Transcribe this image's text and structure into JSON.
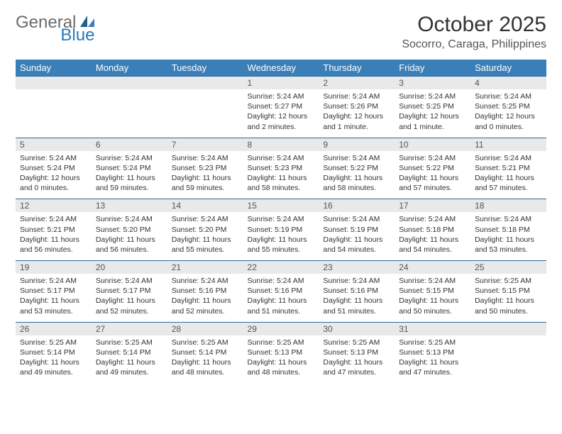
{
  "logo": {
    "general": "General",
    "blue": "Blue"
  },
  "header": {
    "title": "October 2025",
    "location": "Socorro, Caraga, Philippines"
  },
  "styling": {
    "header_row_bg": "#3b7fb8",
    "header_row_color": "#ffffff",
    "daynum_bg": "#e9e9e9",
    "row_border_color": "#2a6a9c",
    "title_fontsize": 30,
    "location_fontsize": 16,
    "dayhead_fontsize": 13,
    "cell_fontsize": 10.5,
    "logo_general_color": "#6b6b6b",
    "logo_blue_color": "#2a7ab8",
    "background": "#ffffff"
  },
  "day_headers": [
    "Sunday",
    "Monday",
    "Tuesday",
    "Wednesday",
    "Thursday",
    "Friday",
    "Saturday"
  ],
  "weeks": [
    [
      {
        "n": "",
        "sunrise": "",
        "sunset": "",
        "daylight": ""
      },
      {
        "n": "",
        "sunrise": "",
        "sunset": "",
        "daylight": ""
      },
      {
        "n": "",
        "sunrise": "",
        "sunset": "",
        "daylight": ""
      },
      {
        "n": "1",
        "sunrise": "Sunrise: 5:24 AM",
        "sunset": "Sunset: 5:27 PM",
        "daylight": "Daylight: 12 hours and 2 minutes."
      },
      {
        "n": "2",
        "sunrise": "Sunrise: 5:24 AM",
        "sunset": "Sunset: 5:26 PM",
        "daylight": "Daylight: 12 hours and 1 minute."
      },
      {
        "n": "3",
        "sunrise": "Sunrise: 5:24 AM",
        "sunset": "Sunset: 5:25 PM",
        "daylight": "Daylight: 12 hours and 1 minute."
      },
      {
        "n": "4",
        "sunrise": "Sunrise: 5:24 AM",
        "sunset": "Sunset: 5:25 PM",
        "daylight": "Daylight: 12 hours and 0 minutes."
      }
    ],
    [
      {
        "n": "5",
        "sunrise": "Sunrise: 5:24 AM",
        "sunset": "Sunset: 5:24 PM",
        "daylight": "Daylight: 12 hours and 0 minutes."
      },
      {
        "n": "6",
        "sunrise": "Sunrise: 5:24 AM",
        "sunset": "Sunset: 5:24 PM",
        "daylight": "Daylight: 11 hours and 59 minutes."
      },
      {
        "n": "7",
        "sunrise": "Sunrise: 5:24 AM",
        "sunset": "Sunset: 5:23 PM",
        "daylight": "Daylight: 11 hours and 59 minutes."
      },
      {
        "n": "8",
        "sunrise": "Sunrise: 5:24 AM",
        "sunset": "Sunset: 5:23 PM",
        "daylight": "Daylight: 11 hours and 58 minutes."
      },
      {
        "n": "9",
        "sunrise": "Sunrise: 5:24 AM",
        "sunset": "Sunset: 5:22 PM",
        "daylight": "Daylight: 11 hours and 58 minutes."
      },
      {
        "n": "10",
        "sunrise": "Sunrise: 5:24 AM",
        "sunset": "Sunset: 5:22 PM",
        "daylight": "Daylight: 11 hours and 57 minutes."
      },
      {
        "n": "11",
        "sunrise": "Sunrise: 5:24 AM",
        "sunset": "Sunset: 5:21 PM",
        "daylight": "Daylight: 11 hours and 57 minutes."
      }
    ],
    [
      {
        "n": "12",
        "sunrise": "Sunrise: 5:24 AM",
        "sunset": "Sunset: 5:21 PM",
        "daylight": "Daylight: 11 hours and 56 minutes."
      },
      {
        "n": "13",
        "sunrise": "Sunrise: 5:24 AM",
        "sunset": "Sunset: 5:20 PM",
        "daylight": "Daylight: 11 hours and 56 minutes."
      },
      {
        "n": "14",
        "sunrise": "Sunrise: 5:24 AM",
        "sunset": "Sunset: 5:20 PM",
        "daylight": "Daylight: 11 hours and 55 minutes."
      },
      {
        "n": "15",
        "sunrise": "Sunrise: 5:24 AM",
        "sunset": "Sunset: 5:19 PM",
        "daylight": "Daylight: 11 hours and 55 minutes."
      },
      {
        "n": "16",
        "sunrise": "Sunrise: 5:24 AM",
        "sunset": "Sunset: 5:19 PM",
        "daylight": "Daylight: 11 hours and 54 minutes."
      },
      {
        "n": "17",
        "sunrise": "Sunrise: 5:24 AM",
        "sunset": "Sunset: 5:18 PM",
        "daylight": "Daylight: 11 hours and 54 minutes."
      },
      {
        "n": "18",
        "sunrise": "Sunrise: 5:24 AM",
        "sunset": "Sunset: 5:18 PM",
        "daylight": "Daylight: 11 hours and 53 minutes."
      }
    ],
    [
      {
        "n": "19",
        "sunrise": "Sunrise: 5:24 AM",
        "sunset": "Sunset: 5:17 PM",
        "daylight": "Daylight: 11 hours and 53 minutes."
      },
      {
        "n": "20",
        "sunrise": "Sunrise: 5:24 AM",
        "sunset": "Sunset: 5:17 PM",
        "daylight": "Daylight: 11 hours and 52 minutes."
      },
      {
        "n": "21",
        "sunrise": "Sunrise: 5:24 AM",
        "sunset": "Sunset: 5:16 PM",
        "daylight": "Daylight: 11 hours and 52 minutes."
      },
      {
        "n": "22",
        "sunrise": "Sunrise: 5:24 AM",
        "sunset": "Sunset: 5:16 PM",
        "daylight": "Daylight: 11 hours and 51 minutes."
      },
      {
        "n": "23",
        "sunrise": "Sunrise: 5:24 AM",
        "sunset": "Sunset: 5:16 PM",
        "daylight": "Daylight: 11 hours and 51 minutes."
      },
      {
        "n": "24",
        "sunrise": "Sunrise: 5:24 AM",
        "sunset": "Sunset: 5:15 PM",
        "daylight": "Daylight: 11 hours and 50 minutes."
      },
      {
        "n": "25",
        "sunrise": "Sunrise: 5:25 AM",
        "sunset": "Sunset: 5:15 PM",
        "daylight": "Daylight: 11 hours and 50 minutes."
      }
    ],
    [
      {
        "n": "26",
        "sunrise": "Sunrise: 5:25 AM",
        "sunset": "Sunset: 5:14 PM",
        "daylight": "Daylight: 11 hours and 49 minutes."
      },
      {
        "n": "27",
        "sunrise": "Sunrise: 5:25 AM",
        "sunset": "Sunset: 5:14 PM",
        "daylight": "Daylight: 11 hours and 49 minutes."
      },
      {
        "n": "28",
        "sunrise": "Sunrise: 5:25 AM",
        "sunset": "Sunset: 5:14 PM",
        "daylight": "Daylight: 11 hours and 48 minutes."
      },
      {
        "n": "29",
        "sunrise": "Sunrise: 5:25 AM",
        "sunset": "Sunset: 5:13 PM",
        "daylight": "Daylight: 11 hours and 48 minutes."
      },
      {
        "n": "30",
        "sunrise": "Sunrise: 5:25 AM",
        "sunset": "Sunset: 5:13 PM",
        "daylight": "Daylight: 11 hours and 47 minutes."
      },
      {
        "n": "31",
        "sunrise": "Sunrise: 5:25 AM",
        "sunset": "Sunset: 5:13 PM",
        "daylight": "Daylight: 11 hours and 47 minutes."
      },
      {
        "n": "",
        "sunrise": "",
        "sunset": "",
        "daylight": ""
      }
    ]
  ]
}
